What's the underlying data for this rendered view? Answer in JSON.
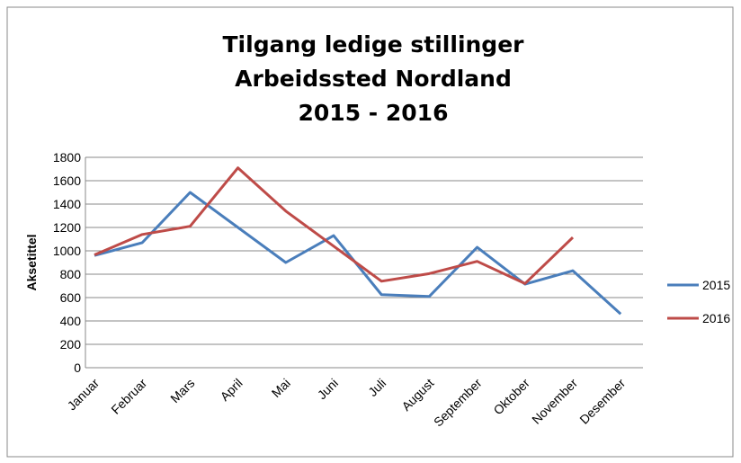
{
  "chart_data": {
    "type": "line",
    "title": [
      "Tilgang ledige stillinger",
      "Arbeidssted Nordland",
      "2015 - 2016"
    ],
    "y_label": "Aksetittel",
    "categories": [
      "Januar",
      "Februar",
      "Mars",
      "April",
      "Mai",
      "Juni",
      "Juli",
      "August",
      "September",
      "Oktober",
      "November",
      "Desember"
    ],
    "series": [
      {
        "name": "2015",
        "color": "#4a7ebb",
        "values": [
          960,
          1070,
          1500,
          1200,
          900,
          1130,
          625,
          610,
          1030,
          715,
          830,
          460
        ]
      },
      {
        "name": "2016",
        "color": "#be4b48",
        "values": [
          965,
          1140,
          1210,
          1710,
          1340,
          1040,
          740,
          805,
          910,
          720,
          1115,
          null
        ]
      }
    ],
    "ylim": [
      0,
      1800
    ],
    "yticks": [
      0,
      200,
      400,
      600,
      800,
      1000,
      1200,
      1400,
      1600,
      1800
    ],
    "grid": true,
    "legend": "right"
  }
}
